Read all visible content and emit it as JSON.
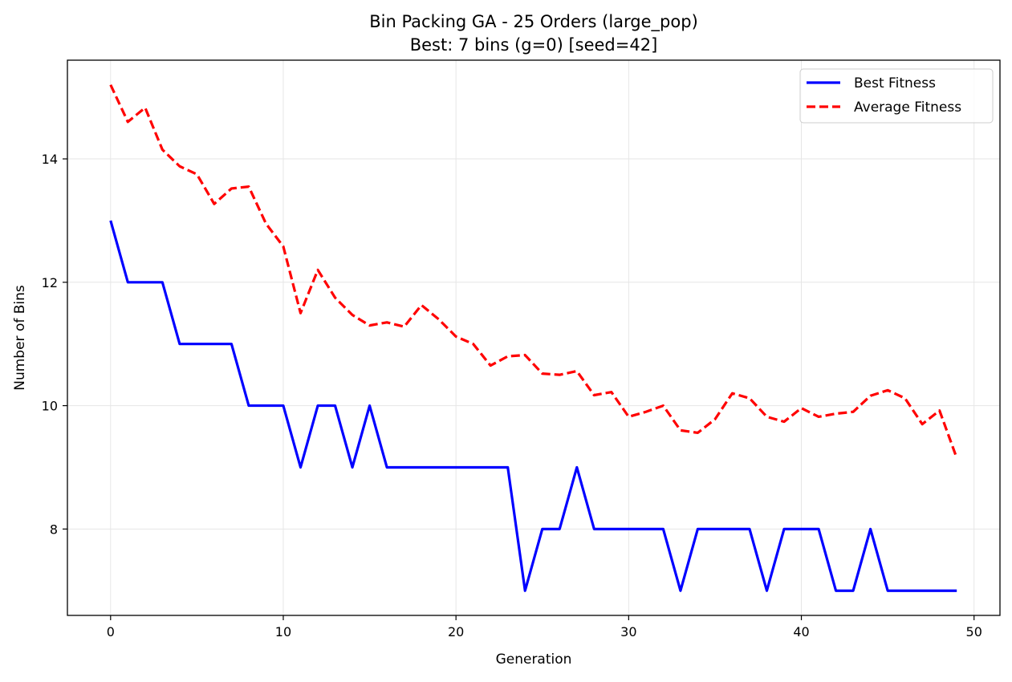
{
  "chart_data": {
    "type": "line",
    "title": "Bin Packing GA - 25 Orders (large_pop)",
    "subtitle": "Best: 7 bins (g=0) [seed=42]",
    "xlabel": "Generation",
    "ylabel": "Number of Bins",
    "xlim": [
      -2.5,
      51.5
    ],
    "ylim": [
      6.6,
      15.6
    ],
    "xticks": [
      0,
      10,
      20,
      30,
      40,
      50
    ],
    "yticks": [
      8,
      10,
      12,
      14
    ],
    "grid": true,
    "legend_position": "top-right",
    "x": [
      0,
      1,
      2,
      3,
      4,
      5,
      6,
      7,
      8,
      9,
      10,
      11,
      12,
      13,
      14,
      15,
      16,
      17,
      18,
      19,
      20,
      21,
      22,
      23,
      24,
      25,
      26,
      27,
      28,
      29,
      30,
      31,
      32,
      33,
      34,
      35,
      36,
      37,
      38,
      39,
      40,
      41,
      42,
      43,
      44,
      45,
      46,
      47,
      48,
      49
    ],
    "series": [
      {
        "name": "Best Fitness",
        "color": "#0000ff",
        "style": "solid",
        "values": [
          13,
          12,
          12,
          12,
          11,
          11,
          11,
          11,
          10,
          10,
          10,
          9,
          10,
          10,
          9,
          10,
          9,
          9,
          9,
          9,
          9,
          9,
          9,
          9,
          7,
          8,
          8,
          9,
          8,
          8,
          8,
          8,
          8,
          7,
          8,
          8,
          8,
          8,
          7,
          8,
          8,
          8,
          7,
          7,
          8,
          7,
          7,
          7,
          7,
          7
        ]
      },
      {
        "name": "Average Fitness",
        "color": "#ff0000",
        "style": "dashed",
        "values": [
          15.2,
          14.6,
          14.83,
          14.15,
          13.88,
          13.75,
          13.27,
          13.52,
          13.55,
          12.95,
          12.58,
          11.5,
          12.2,
          11.75,
          11.47,
          11.3,
          11.35,
          11.28,
          11.63,
          11.4,
          11.12,
          11.0,
          10.65,
          10.8,
          10.82,
          10.52,
          10.5,
          10.56,
          10.17,
          10.22,
          9.82,
          9.9,
          10.0,
          9.6,
          9.56,
          9.78,
          10.2,
          10.12,
          9.82,
          9.74,
          9.96,
          9.82,
          9.87,
          9.9,
          10.16,
          10.25,
          10.12,
          9.7,
          9.92,
          9.15
        ]
      }
    ]
  }
}
